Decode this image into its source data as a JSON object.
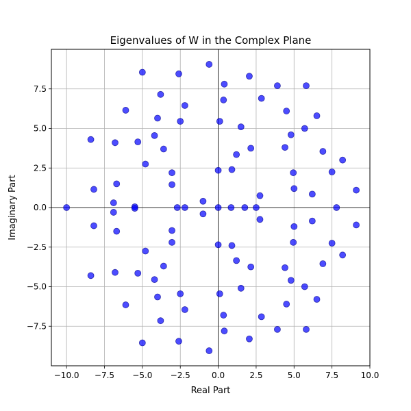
{
  "chart_data": {
    "type": "scatter",
    "title": "Eigenvalues of W in the Complex Plane",
    "xlabel": "Real Part",
    "ylabel": "Imaginary Part",
    "xlim": [
      -11,
      10
    ],
    "ylim": [
      -10,
      10
    ],
    "xticks": [
      -10.0,
      -7.5,
      -5.0,
      -2.5,
      0.0,
      2.5,
      5.0,
      7.5,
      10.0
    ],
    "xtick_labels": [
      "−10.0",
      "−7.5",
      "−5.0",
      "−2.5",
      "0.0",
      "2.5",
      "5.0",
      "7.5",
      "10.0"
    ],
    "yticks": [
      -7.5,
      -5.0,
      -2.5,
      0.0,
      2.5,
      5.0,
      7.5
    ],
    "ytick_labels": [
      "−7.5",
      "−5.0",
      "−2.5",
      "0.0",
      "2.5",
      "5.0",
      "7.5"
    ],
    "grid": true,
    "reference_lines": [
      {
        "axis": "x",
        "value": 0
      },
      {
        "axis": "y",
        "value": 0
      }
    ],
    "marker_color": "#0000ff",
    "marker_edge_color": "#00008b",
    "marker_alpha": 0.7,
    "points": [
      [
        -10.0,
        0.0
      ],
      [
        -8.4,
        4.3
      ],
      [
        -8.4,
        -4.3
      ],
      [
        -8.2,
        1.15
      ],
      [
        -8.2,
        -1.15
      ],
      [
        -6.9,
        0.3
      ],
      [
        -6.9,
        -0.3
      ],
      [
        -6.8,
        4.1
      ],
      [
        -6.8,
        -4.1
      ],
      [
        -6.7,
        1.5
      ],
      [
        -6.7,
        -1.5
      ],
      [
        -6.1,
        6.15
      ],
      [
        -6.1,
        -6.15
      ],
      [
        -5.5,
        0.05
      ],
      [
        -5.5,
        -0.05
      ],
      [
        -5.3,
        4.15
      ],
      [
        -5.3,
        -4.15
      ],
      [
        -5.0,
        8.55
      ],
      [
        -5.0,
        -8.55
      ],
      [
        -4.8,
        2.75
      ],
      [
        -4.8,
        -2.75
      ],
      [
        -4.2,
        4.55
      ],
      [
        -4.2,
        -4.55
      ],
      [
        -4.0,
        5.65
      ],
      [
        -4.0,
        -5.65
      ],
      [
        -3.8,
        7.15
      ],
      [
        -3.8,
        -7.15
      ],
      [
        -3.6,
        3.7
      ],
      [
        -3.6,
        -3.7
      ],
      [
        -3.05,
        2.2
      ],
      [
        -3.05,
        -2.2
      ],
      [
        -3.05,
        1.45
      ],
      [
        -3.05,
        -1.45
      ],
      [
        -2.7,
        0.0
      ],
      [
        -2.6,
        8.45
      ],
      [
        -2.6,
        -8.45
      ],
      [
        -2.5,
        5.45
      ],
      [
        -2.5,
        -5.45
      ],
      [
        -2.2,
        6.45
      ],
      [
        -2.2,
        -6.45
      ],
      [
        -2.2,
        0.0
      ],
      [
        -1.0,
        0.4
      ],
      [
        -1.0,
        -0.4
      ],
      [
        -0.6,
        9.05
      ],
      [
        -0.6,
        -9.05
      ],
      [
        0.0,
        0.0
      ],
      [
        0.0,
        2.35
      ],
      [
        0.0,
        -2.35
      ],
      [
        0.1,
        5.45
      ],
      [
        0.1,
        -5.45
      ],
      [
        0.35,
        6.8
      ],
      [
        0.35,
        -6.8
      ],
      [
        0.4,
        7.8
      ],
      [
        0.4,
        -7.8
      ],
      [
        0.85,
        0.0
      ],
      [
        0.9,
        2.4
      ],
      [
        0.9,
        -2.4
      ],
      [
        1.2,
        3.35
      ],
      [
        1.2,
        -3.35
      ],
      [
        1.5,
        5.1
      ],
      [
        1.5,
        -5.1
      ],
      [
        1.75,
        0.0
      ],
      [
        2.05,
        8.3
      ],
      [
        2.05,
        -8.3
      ],
      [
        2.15,
        3.75
      ],
      [
        2.15,
        -3.75
      ],
      [
        2.5,
        0.0
      ],
      [
        2.75,
        0.75
      ],
      [
        2.75,
        -0.75
      ],
      [
        2.85,
        6.9
      ],
      [
        2.85,
        -6.9
      ],
      [
        3.9,
        7.7
      ],
      [
        3.9,
        -7.7
      ],
      [
        4.4,
        3.8
      ],
      [
        4.4,
        -3.8
      ],
      [
        4.5,
        6.1
      ],
      [
        4.5,
        -6.1
      ],
      [
        4.8,
        4.6
      ],
      [
        4.8,
        -4.6
      ],
      [
        4.95,
        2.2
      ],
      [
        4.95,
        -2.2
      ],
      [
        5.0,
        1.2
      ],
      [
        5.0,
        -1.2
      ],
      [
        5.7,
        5.0
      ],
      [
        5.7,
        -5.0
      ],
      [
        5.8,
        7.7
      ],
      [
        5.8,
        -7.7
      ],
      [
        6.2,
        0.85
      ],
      [
        6.2,
        -0.85
      ],
      [
        6.5,
        5.8
      ],
      [
        6.5,
        -5.8
      ],
      [
        6.9,
        3.55
      ],
      [
        6.9,
        -3.55
      ],
      [
        7.5,
        2.25
      ],
      [
        7.5,
        -2.25
      ],
      [
        7.8,
        0.0
      ],
      [
        8.2,
        3.0
      ],
      [
        8.2,
        -3.0
      ],
      [
        9.1,
        1.1
      ],
      [
        9.1,
        -1.1
      ]
    ]
  }
}
